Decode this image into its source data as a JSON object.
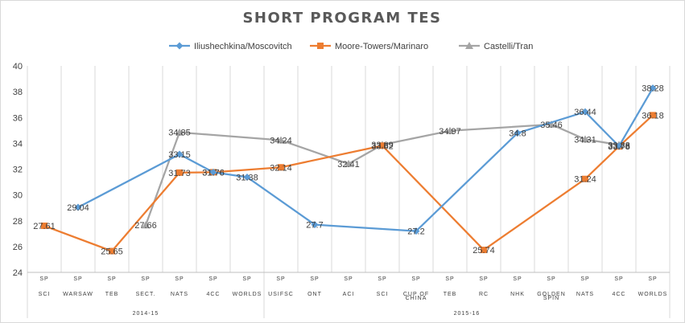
{
  "chart_data": {
    "type": "line",
    "title": "SHORT PROGRAM TES",
    "xlabel": "",
    "ylabel": "",
    "ylim": [
      24,
      40
    ],
    "yticks": [
      24,
      26,
      28,
      30,
      32,
      34,
      36,
      38,
      40
    ],
    "grid": "vertical",
    "legend_position": "top",
    "categories": [
      [
        "SP",
        "SCI"
      ],
      [
        "SP",
        "WARSAW"
      ],
      [
        "SP",
        "TEB"
      ],
      [
        "SP",
        "SECT."
      ],
      [
        "SP",
        "NATS"
      ],
      [
        "SP",
        "4CC"
      ],
      [
        "SP",
        "WORLDS"
      ],
      [
        "SP",
        "USIFSC"
      ],
      [
        "SP",
        "ONT"
      ],
      [
        "SP",
        "ACI"
      ],
      [
        "SP",
        "SCI"
      ],
      [
        "SP",
        "CUP OF",
        "CHINA"
      ],
      [
        "SP",
        "TEB"
      ],
      [
        "SP",
        "RC"
      ],
      [
        "SP",
        "NHK"
      ],
      [
        "SP",
        "GOLDEN",
        "SPIN"
      ],
      [
        "SP",
        "NATS"
      ],
      [
        "SP",
        "4CC"
      ],
      [
        "SP",
        "WORLDS"
      ]
    ],
    "seasons": [
      {
        "label": "2014-15",
        "start": 0,
        "end": 6
      },
      {
        "label": "2015-16",
        "start": 7,
        "end": 18
      }
    ],
    "series": [
      {
        "name": "Iliushechkina/Moscovitch",
        "color": "#5b9bd5",
        "marker": "diamond",
        "values": [
          null,
          29.04,
          null,
          null,
          33.15,
          31.76,
          31.38,
          null,
          27.7,
          null,
          null,
          27.2,
          null,
          null,
          34.8,
          null,
          36.44,
          33.78,
          38.28
        ],
        "labels": [
          null,
          "29.04",
          null,
          null,
          "33.15",
          "31.76",
          "31.38",
          null,
          "27.7",
          null,
          null,
          "27.2",
          null,
          null,
          "34.8",
          null,
          "36.44",
          "33.78",
          "38.28"
        ]
      },
      {
        "name": "Moore-Towers/Marinaro",
        "color": "#ed7d31",
        "marker": "square",
        "values": [
          27.61,
          null,
          25.65,
          null,
          31.73,
          31.76,
          null,
          32.14,
          null,
          null,
          33.82,
          null,
          null,
          25.74,
          null,
          null,
          31.24,
          33.76,
          36.18
        ],
        "labels": [
          "27.61",
          null,
          "25.65",
          null,
          "31.73",
          "31.76",
          null,
          "32.14",
          null,
          null,
          "33.82",
          null,
          null,
          "25.74",
          null,
          null,
          "31.24",
          "33.76",
          "36.18"
        ]
      },
      {
        "name": "Castelli/Tran",
        "color": "#a5a5a5",
        "marker": "triangle",
        "values": [
          null,
          null,
          null,
          27.66,
          34.85,
          null,
          null,
          34.24,
          null,
          32.41,
          33.89,
          null,
          34.97,
          null,
          null,
          35.46,
          34.31,
          33.88,
          null
        ],
        "labels": [
          null,
          null,
          null,
          "27.66",
          "34.85",
          null,
          null,
          "34.24",
          null,
          "32.41",
          "33.89",
          null,
          "34.97",
          null,
          null,
          "35.46",
          "34.31",
          "33.88",
          null
        ]
      }
    ]
  }
}
